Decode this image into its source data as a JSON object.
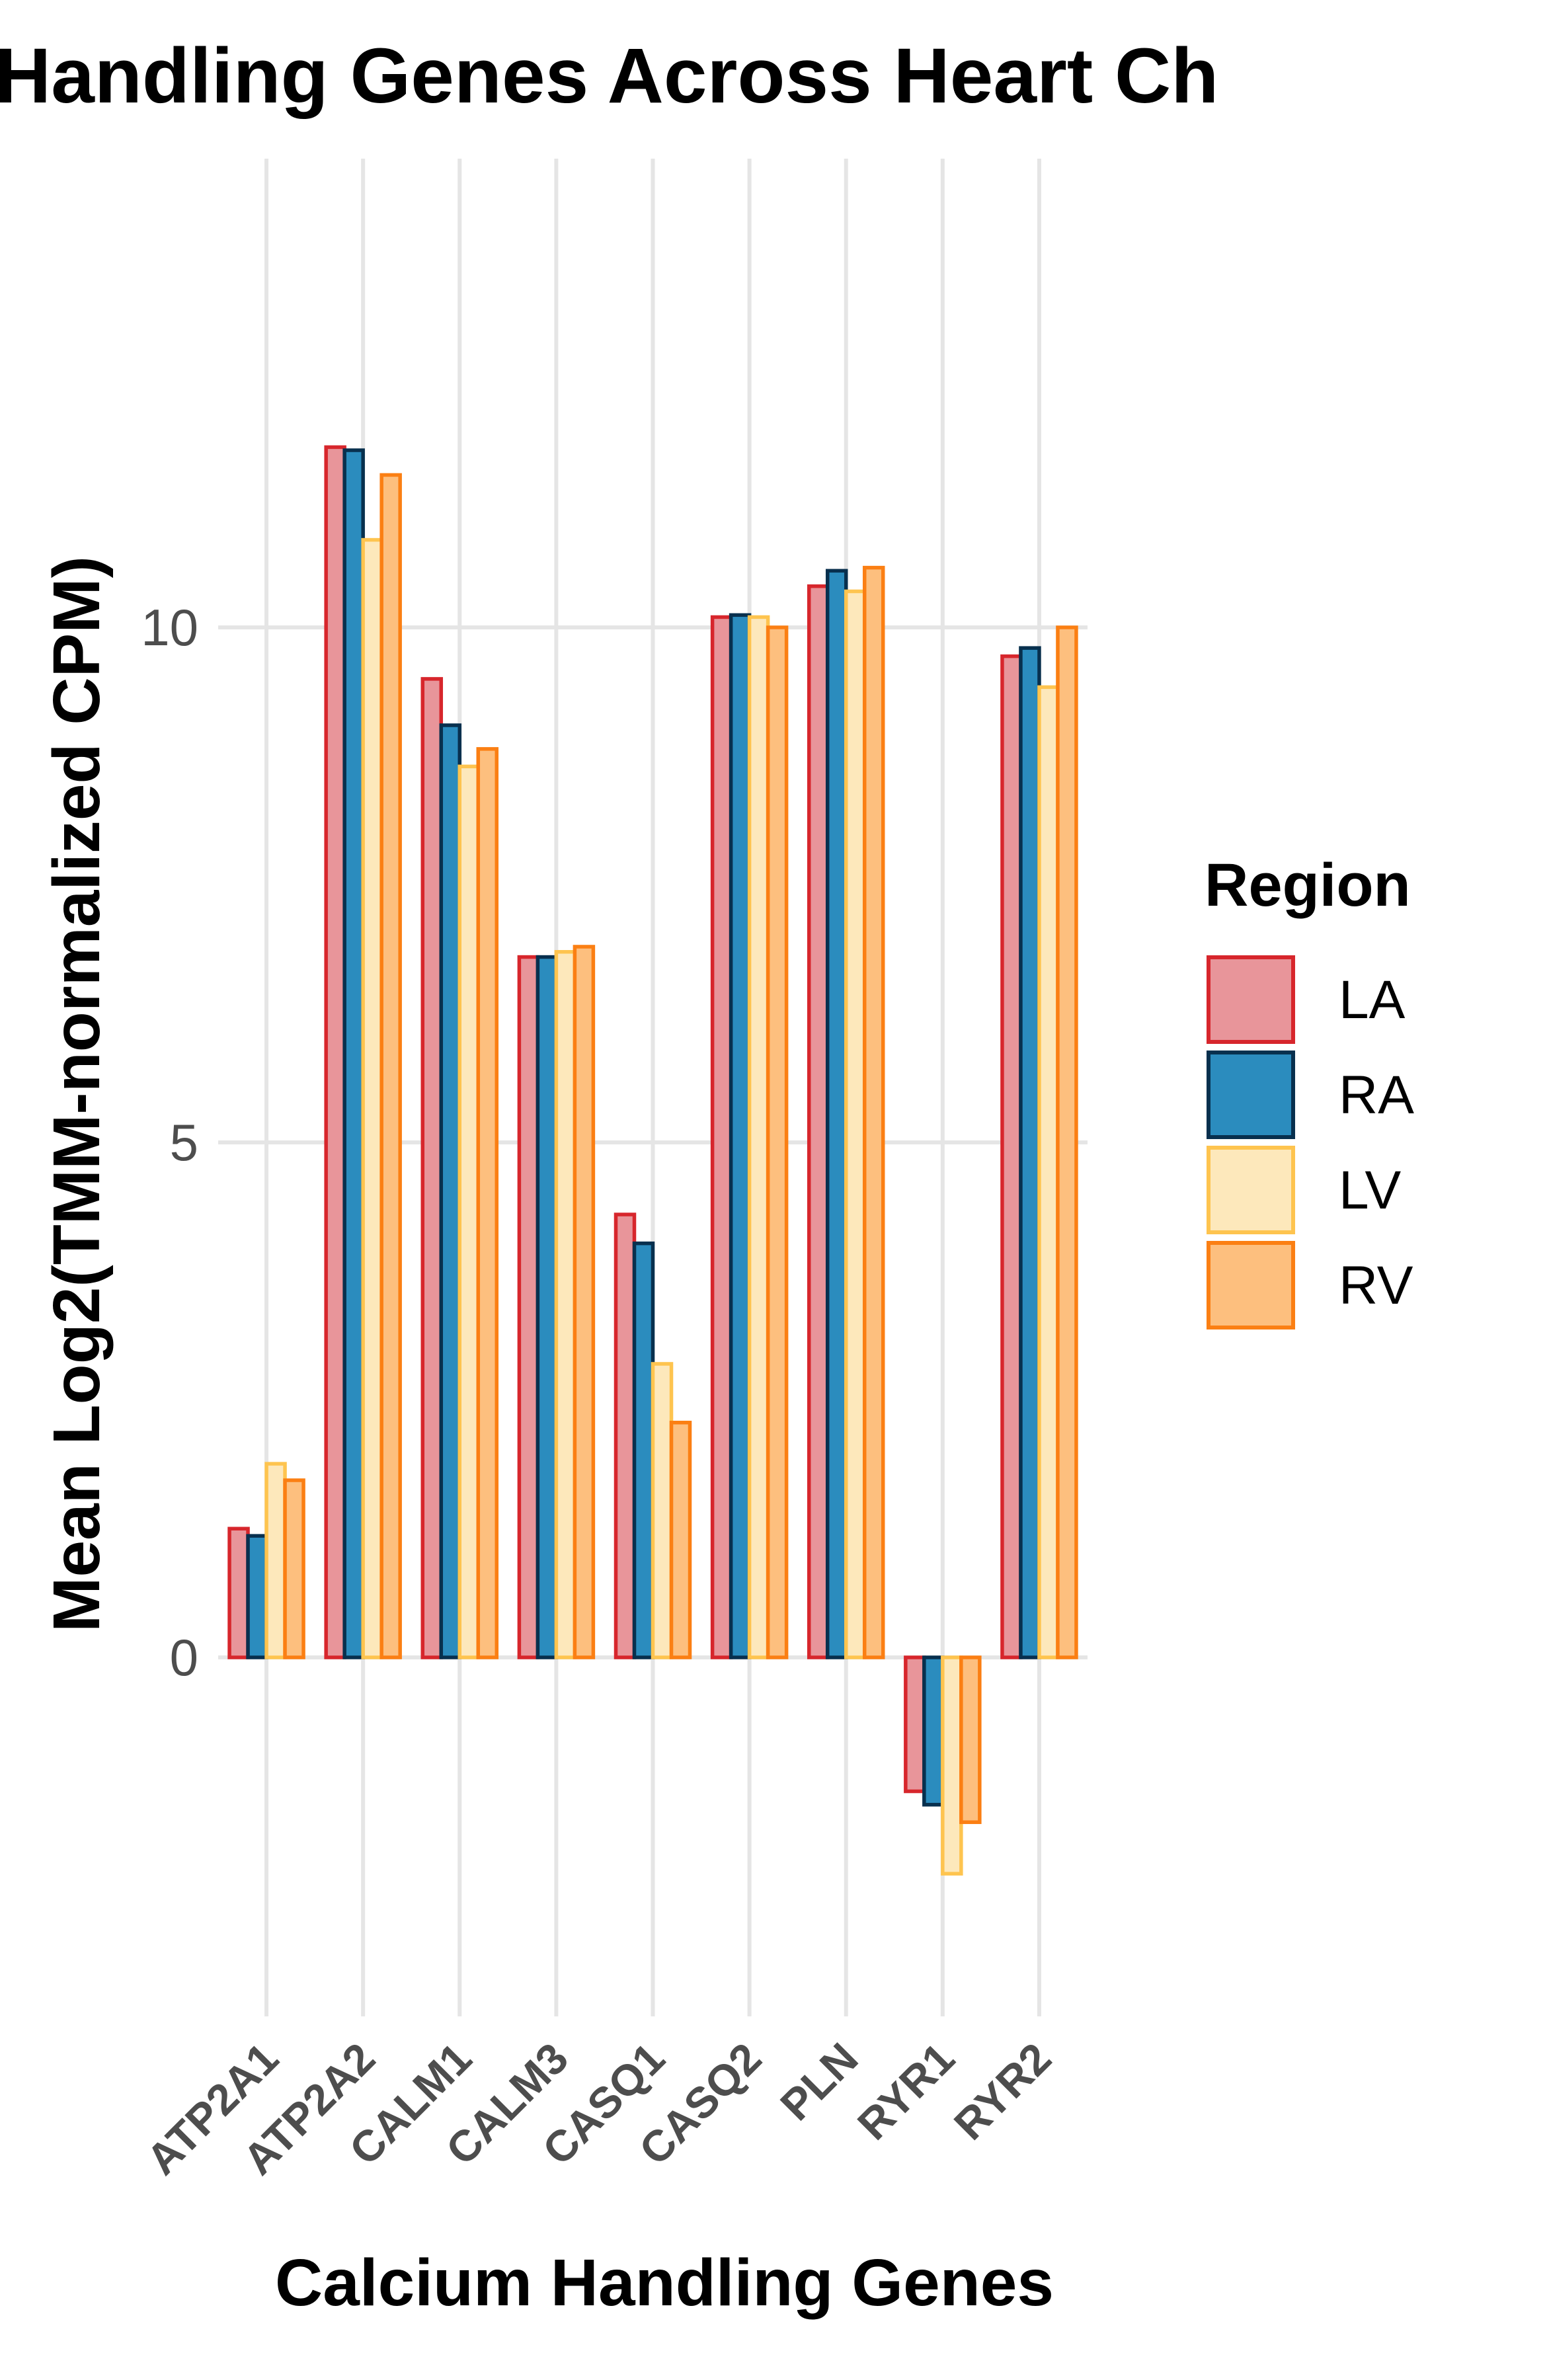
{
  "chart_data": {
    "type": "bar",
    "title": "Handling Genes Across Heart Ch",
    "xlabel": "Calcium Handling Genes",
    "ylabel": "Mean Log2(TMM-normalized CPM)",
    "categories": [
      "ATP2A1",
      "ATP2A2",
      "CALM1",
      "CALM3",
      "CASQ1",
      "CASQ2",
      "PLN",
      "RYR1",
      "RYR2"
    ],
    "y_ticks": [
      "0",
      "5",
      "10"
    ],
    "y_tick_values": [
      0,
      5,
      10
    ],
    "ylim": [
      -3.35,
      14.5
    ],
    "grid": true,
    "legend": {
      "title": "Region",
      "position": "right"
    },
    "series": [
      {
        "name": "LA",
        "fill": "#e8959a",
        "stroke": "#d7262c",
        "values": [
          1.25,
          11.75,
          9.5,
          6.8,
          4.3,
          10.1,
          10.4,
          -1.3,
          9.72
        ]
      },
      {
        "name": "RA",
        "fill": "#2b8cbe",
        "stroke": "#08304e",
        "values": [
          1.18,
          11.72,
          9.05,
          6.8,
          4.02,
          10.12,
          10.55,
          -1.43,
          9.8
        ]
      },
      {
        "name": "LV",
        "fill": "#fde8bb",
        "stroke": "#fec44f",
        "values": [
          1.88,
          10.85,
          8.65,
          6.85,
          2.85,
          10.1,
          10.35,
          -2.1,
          9.42
        ]
      },
      {
        "name": "RV",
        "fill": "#fdbf7e",
        "stroke": "#fb7f13",
        "values": [
          1.72,
          11.48,
          8.82,
          6.9,
          2.28,
          10.0,
          10.58,
          -1.6,
          10.0
        ]
      }
    ]
  }
}
